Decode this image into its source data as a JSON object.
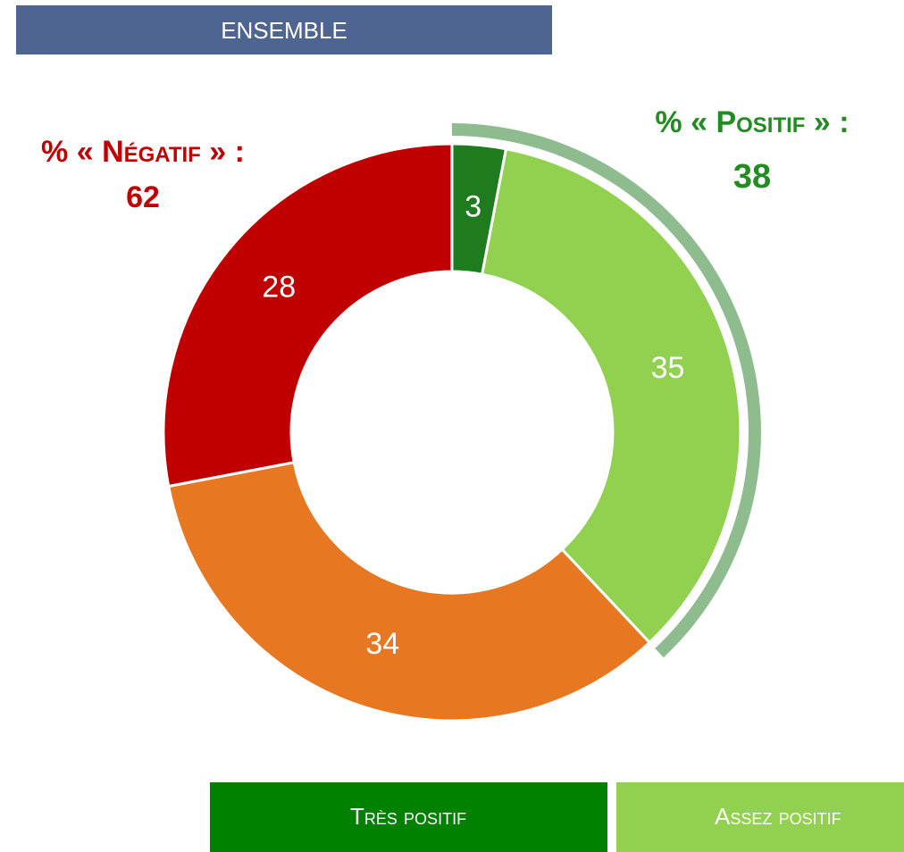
{
  "chart_data": {
    "type": "donut",
    "title": "Ensemble",
    "categories": [
      "Très positif",
      "Assez positif",
      null,
      null
    ],
    "values": [
      3,
      35,
      34,
      28
    ],
    "colors": [
      "#1e7b1e",
      "#92d050",
      "#e87722",
      "#c00000"
    ],
    "legend_colors": [
      "#008000",
      "#92d050"
    ],
    "negative_label": "% « Négatif » :",
    "negative_total": 62,
    "positive_label": "% « Positif » :",
    "positive_total": 38,
    "positive_arc_color": "#8fbc8f"
  }
}
